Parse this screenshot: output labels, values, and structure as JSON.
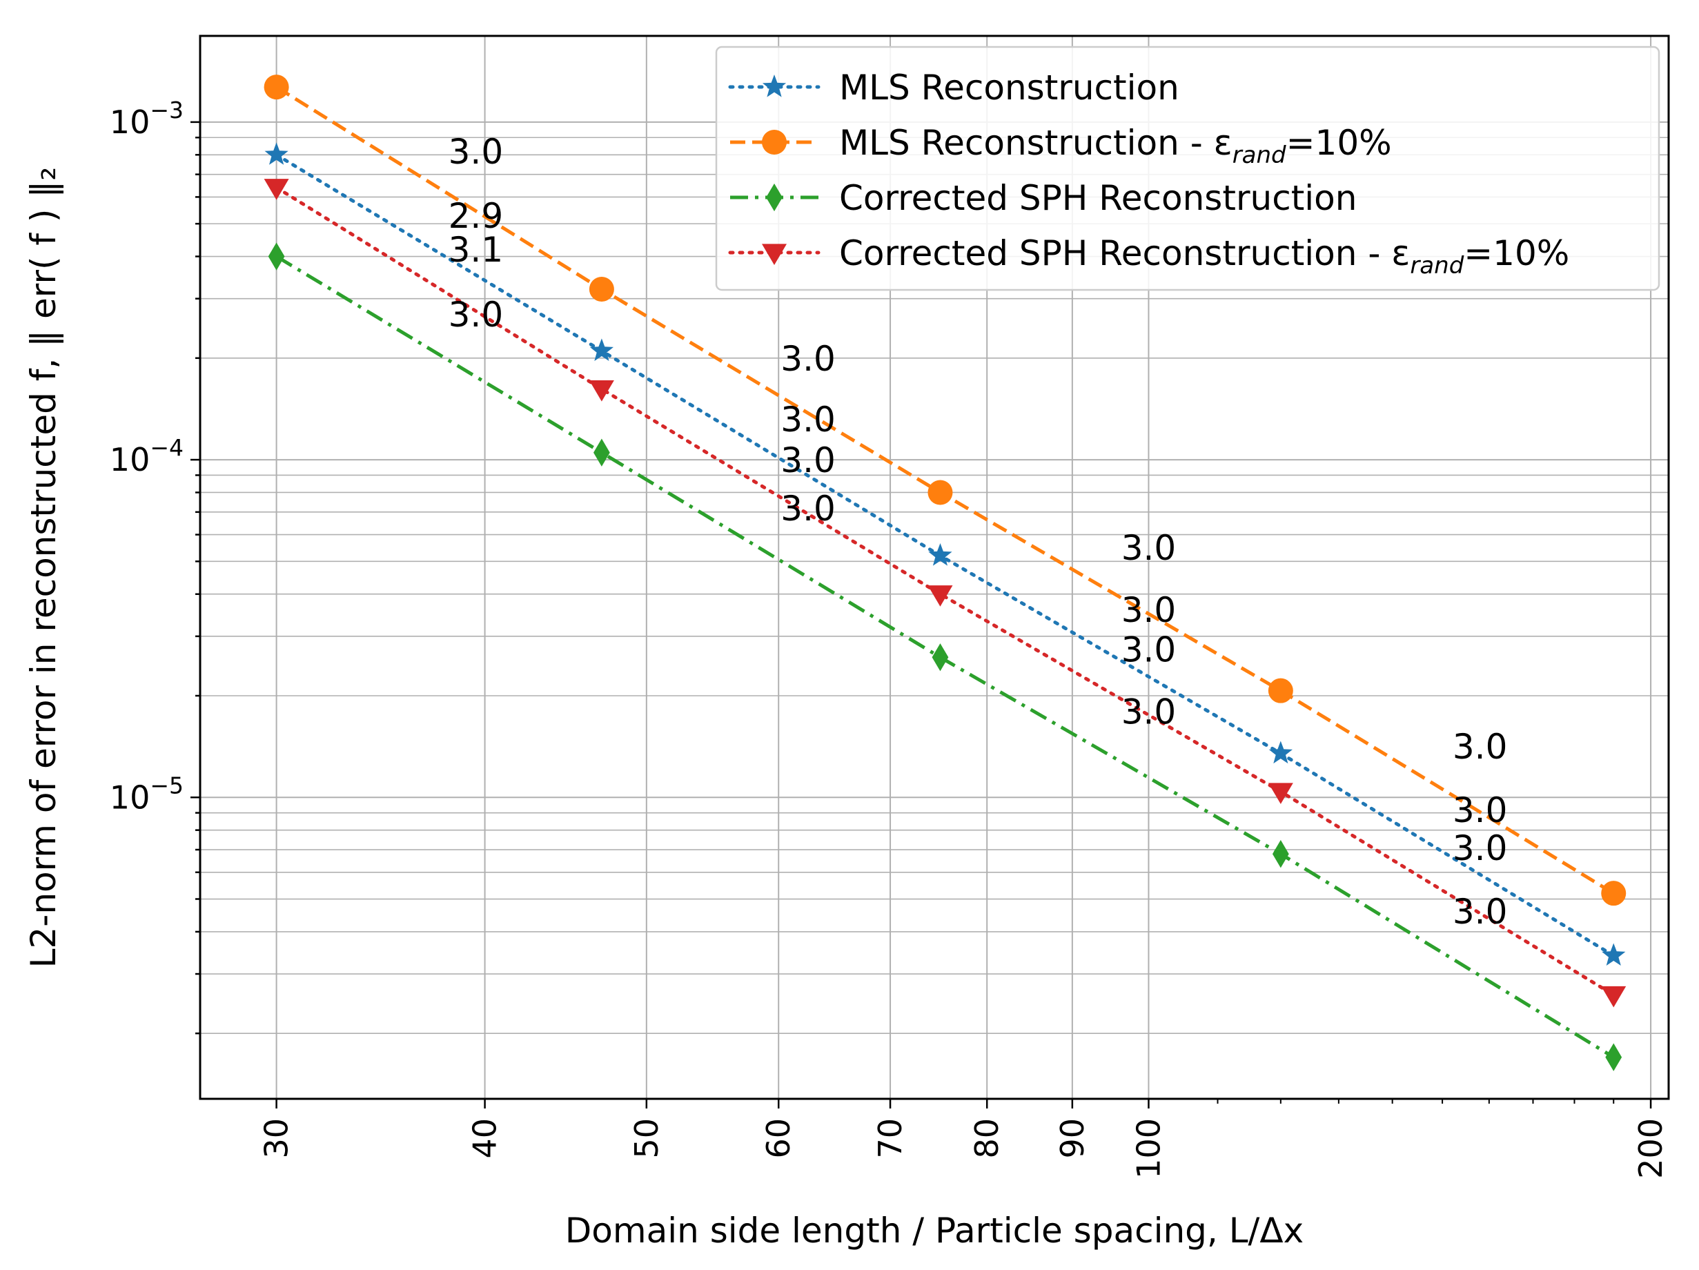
{
  "chart_data": {
    "type": "line",
    "xscale": "log",
    "yscale": "log",
    "xlabel": "Domain side length / Particle spacing, L/Δx",
    "ylabel": "L2-norm of error in reconstructed f, ‖ err( f ) ‖₂",
    "xlim": [
      27,
      205
    ],
    "ylim": [
      1.28e-06,
      0.0018
    ],
    "grid": true,
    "legend_position": "top-right",
    "x_ticks": [
      {
        "value": 30,
        "label": "30"
      },
      {
        "value": 40,
        "label": "40"
      },
      {
        "value": 50,
        "label": "50"
      },
      {
        "value": 60,
        "label": "60"
      },
      {
        "value": 70,
        "label": "70"
      },
      {
        "value": 80,
        "label": "80"
      },
      {
        "value": 90,
        "label": "90"
      },
      {
        "value": 100,
        "label": "100"
      },
      {
        "value": 200,
        "label": "200"
      }
    ],
    "y_major_ticks": [
      {
        "value": 1e-05,
        "base": "10",
        "exp": "−5"
      },
      {
        "value": 0.0001,
        "base": "10",
        "exp": "−4"
      },
      {
        "value": 0.001,
        "base": "10",
        "exp": "−3"
      }
    ],
    "x": [
      30,
      47,
      75,
      120,
      190
    ],
    "series": [
      {
        "name_main": "MLS Reconstruction",
        "name_sub": "",
        "name_tail": "",
        "color": "#1f77b4",
        "dash": "dotted",
        "marker": "star",
        "values": [
          0.0008,
          0.00021,
          5.2e-05,
          1.35e-05,
          3.4e-06
        ]
      },
      {
        "name_main": "MLS Reconstruction - ε",
        "name_sub": "rand",
        "name_tail": "=10%",
        "color": "#ff7f0e",
        "dash": "dashed",
        "marker": "circle",
        "values": [
          0.00127,
          0.00032,
          8e-05,
          2.07e-05,
          5.2e-06
        ]
      },
      {
        "name_main": "Corrected SPH Reconstruction",
        "name_sub": "",
        "name_tail": "",
        "color": "#2ca02c",
        "dash": "dashdot",
        "marker": "diamond",
        "values": [
          0.0004,
          0.000105,
          2.6e-05,
          6.8e-06,
          1.7e-06
        ]
      },
      {
        "name_main": "Corrected SPH Reconstruction - ε",
        "name_sub": "rand",
        "name_tail": "=10%",
        "color": "#d62728",
        "dash": "dotted",
        "marker": "triangle-down",
        "values": [
          0.00064,
          0.000162,
          4e-05,
          1.04e-05,
          2.6e-06
        ]
      }
    ],
    "annotations": [
      {
        "text": "3.0",
        "x": 39.5,
        "y": 0.00082
      },
      {
        "text": "2.9",
        "x": 39.5,
        "y": 0.00053
      },
      {
        "text": "3.1",
        "x": 39.5,
        "y": 0.00042
      },
      {
        "text": "3.0",
        "x": 39.5,
        "y": 0.00027
      },
      {
        "text": "3.0",
        "x": 62.5,
        "y": 0.0002
      },
      {
        "text": "3.0",
        "x": 62.5,
        "y": 0.000132
      },
      {
        "text": "3.0",
        "x": 62.5,
        "y": 0.0001
      },
      {
        "text": "3.0",
        "x": 62.5,
        "y": 7.2e-05
      },
      {
        "text": "3.0",
        "x": 100,
        "y": 5.5e-05
      },
      {
        "text": "3.0",
        "x": 100,
        "y": 3.6e-05
      },
      {
        "text": "3.0",
        "x": 100,
        "y": 2.75e-05
      },
      {
        "text": "3.0",
        "x": 100,
        "y": 1.8e-05
      },
      {
        "text": "3.0",
        "x": 158,
        "y": 1.42e-05
      },
      {
        "text": "3.0",
        "x": 158,
        "y": 9.2e-06
      },
      {
        "text": "3.0",
        "x": 158,
        "y": 7.1e-06
      },
      {
        "text": "3.0",
        "x": 158,
        "y": 4.6e-06
      }
    ]
  }
}
